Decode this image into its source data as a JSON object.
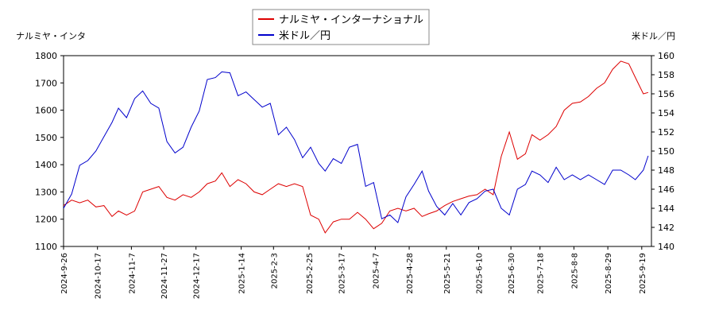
{
  "chart_data": {
    "type": "line",
    "ylabel": "ナルミヤ・インタ",
    "y2label": "米ドル／円",
    "x": [
      "2024-9-26",
      "2024-10-1",
      "2024-10-6",
      "2024-10-11",
      "2024-10-16",
      "2024-10-21",
      "2024-10-26",
      "2024-10-30",
      "2024-11-4",
      "2024-11-9",
      "2024-11-14",
      "2024-11-19",
      "2024-11-24",
      "2024-11-29",
      "2024-12-4",
      "2024-12-9",
      "2024-12-14",
      "2024-12-19",
      "2024-12-24",
      "2024-12-29",
      "2025-1-2",
      "2025-1-7",
      "2025-1-12",
      "2025-1-17",
      "2025-1-22",
      "2025-1-27",
      "2025-2-1",
      "2025-2-6",
      "2025-2-11",
      "2025-2-16",
      "2025-2-21",
      "2025-2-26",
      "2025-3-3",
      "2025-3-7",
      "2025-3-12",
      "2025-3-17",
      "2025-3-22",
      "2025-3-27",
      "2025-4-1",
      "2025-4-6",
      "2025-4-11",
      "2025-4-16",
      "2025-4-21",
      "2025-4-26",
      "2025-5-1",
      "2025-5-6",
      "2025-5-10",
      "2025-5-15",
      "2025-5-20",
      "2025-5-25",
      "2025-5-30",
      "2025-6-4",
      "2025-6-9",
      "2025-6-14",
      "2025-6-19",
      "2025-6-24",
      "2025-6-29",
      "2025-7-4",
      "2025-7-9",
      "2025-7-13",
      "2025-7-18",
      "2025-7-23",
      "2025-7-28",
      "2025-8-2",
      "2025-8-7",
      "2025-8-12",
      "2025-8-17",
      "2025-8-22",
      "2025-8-27",
      "2025-9-1",
      "2025-9-6",
      "2025-9-11",
      "2025-9-15",
      "2025-9-20",
      "2025-9-23"
    ],
    "series": [
      {
        "name": "ナルミヤ・インターナショナル",
        "color": "#dd0000",
        "axis": "y",
        "values": [
          1250,
          1270,
          1260,
          1270,
          1245,
          1250,
          1210,
          1230,
          1215,
          1230,
          1300,
          1310,
          1320,
          1280,
          1270,
          1290,
          1280,
          1300,
          1330,
          1340,
          1370,
          1320,
          1345,
          1330,
          1300,
          1290,
          1310,
          1330,
          1320,
          1330,
          1320,
          1215,
          1200,
          1150,
          1190,
          1200,
          1200,
          1225,
          1200,
          1165,
          1185,
          1230,
          1240,
          1230,
          1240,
          1210,
          1220,
          1230,
          1250,
          1265,
          1275,
          1285,
          1290,
          1310,
          1290,
          1430,
          1520,
          1420,
          1440,
          1510,
          1490,
          1510,
          1540,
          1600,
          1625,
          1630,
          1650,
          1680,
          1700,
          1750,
          1780,
          1770,
          1720,
          1660,
          1665
        ]
      },
      {
        "name": "米ドル／円",
        "color": "#0000cc",
        "axis": "y2",
        "values": [
          144,
          145.5,
          148.5,
          149,
          150,
          151.5,
          153,
          154.5,
          153.5,
          155.5,
          156.3,
          155,
          154.5,
          151,
          149.8,
          150.4,
          152.5,
          154.2,
          157.5,
          157.7,
          158.3,
          158.2,
          155.8,
          156.2,
          155.4,
          154.6,
          155,
          151.7,
          152.5,
          151.2,
          149.3,
          150.4,
          148.7,
          147.9,
          149.2,
          148.7,
          150.4,
          150.7,
          146.3,
          146.7,
          142.9,
          143.3,
          142.5,
          145.2,
          146.5,
          147.9,
          145.8,
          144.2,
          143.3,
          144.5,
          143.3,
          144.6,
          145,
          145.8,
          146,
          144,
          143.3,
          146,
          146.5,
          147.9,
          147.5,
          146.7,
          148.3,
          147,
          147.5,
          147,
          147.5,
          147,
          146.5,
          148,
          148,
          147.5,
          147,
          148,
          149.5
        ]
      }
    ],
    "xlim": [
      "2024-9-26",
      "2025-9-25"
    ],
    "xticks": [
      "2024-9-26",
      "2024-10-17",
      "2024-11-7",
      "2024-11-27",
      "2024-12-17",
      "2025-1-14",
      "2025-2-3",
      "2025-2-25",
      "2025-3-17",
      "2025-4-7",
      "2025-4-28",
      "2025-5-21",
      "2025-6-10",
      "2025-6-30",
      "2025-7-18",
      "2025-8-8",
      "2025-8-29",
      "2025-9-19"
    ],
    "ylim": [
      1100,
      1800
    ],
    "yticks": [
      1100,
      1200,
      1300,
      1400,
      1500,
      1600,
      1700,
      1800
    ],
    "y2lim": [
      140,
      160
    ],
    "y2ticks": [
      140,
      142,
      144,
      146,
      148,
      150,
      152,
      154,
      156,
      158,
      160
    ],
    "legend": "top"
  }
}
